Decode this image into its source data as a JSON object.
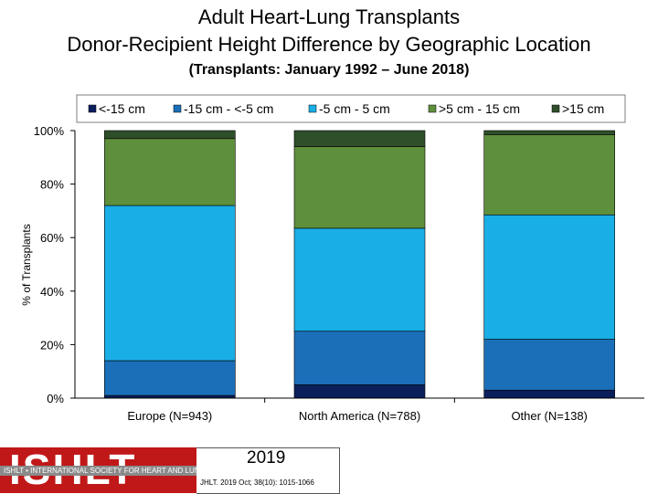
{
  "titles": {
    "line1": "Adult Heart-Lung Transplants",
    "line2": "Donor-Recipient Height Difference by Geographic Location",
    "line3": "(Transplants: January 1992 – June 2018)"
  },
  "colors": {
    "lt_neg15": "#0a1f5c",
    "neg15_neg5": "#1a6fb8",
    "neg5_5": "#1aaee6",
    "gt5_15": "#5e8f3c",
    "gt15": "#2f4f2a"
  },
  "chart_data": {
    "type": "bar",
    "stacked": true,
    "categories": [
      "Europe (N=943)",
      "North America (N=788)",
      "Other (N=138)"
    ],
    "series": [
      {
        "name": "<-15 cm",
        "color_key": "lt_neg15",
        "values": [
          1,
          5,
          3
        ]
      },
      {
        "name": "-15 cm - <-5 cm",
        "color_key": "neg15_neg5",
        "values": [
          13,
          20,
          19
        ]
      },
      {
        "name": "-5 cm - 5 cm",
        "color_key": "neg5_5",
        "values": [
          58,
          38.5,
          46.5
        ]
      },
      {
        "name": ">5 cm - 15 cm",
        "color_key": "gt5_15",
        "values": [
          25,
          30.5,
          30
        ]
      },
      {
        "name": ">15 cm",
        "color_key": "gt15",
        "values": [
          3,
          6,
          1.5
        ]
      }
    ],
    "xlabel": "",
    "ylabel": "% of Transplants",
    "ylim": [
      0,
      100
    ],
    "yticks": [
      "0%",
      "20%",
      "40%",
      "60%",
      "80%",
      "100%"
    ],
    "legend_position": "top",
    "grid": false
  },
  "footer": {
    "logo_text": "ISHLT",
    "logo_strip": "ISHLT • INTERNATIONAL SOCIETY FOR HEART AND LUNG TRANSPLANTATION",
    "year": "2019",
    "citation": "JHLT. 2019 Oct; 38(10): 1015-1066"
  }
}
